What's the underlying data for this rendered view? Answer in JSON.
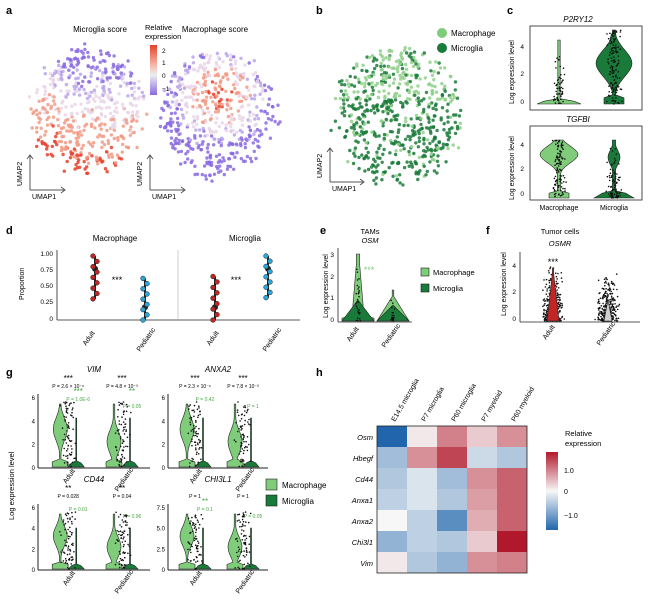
{
  "panels": {
    "a": {
      "letter": "a",
      "title_left": "Microglia score",
      "title_right": "Macrophage score",
      "legend_title_1": "Relative",
      "legend_title_2": "expression",
      "legend_ticks": [
        "2",
        "1",
        "0",
        "−1"
      ],
      "axis_y": "UMAP2",
      "axis_x": "UMAP1"
    },
    "b": {
      "letter": "b",
      "legend": [
        {
          "label": "Macrophage",
          "color": "#7fcc7a"
        },
        {
          "label": "Microglia",
          "color": "#1a7a3a"
        }
      ],
      "axis_y": "UMAP2",
      "axis_x": "UMAP1"
    },
    "c": {
      "letter": "c",
      "gene_top": "P2RY12",
      "gene_bottom": "TGFBI",
      "ylabel": "Log expression level",
      "ticks": [
        "4",
        "2",
        "0"
      ],
      "xlabels": [
        "Macrophage",
        "Microglia"
      ]
    },
    "d": {
      "letter": "d",
      "title_left": "Macrophage",
      "title_right": "Microglia",
      "ylabel": "Proportion",
      "ticks": [
        "1.00",
        "0.75",
        "0.50",
        "0.25",
        "0"
      ],
      "sig": "***",
      "xlabels": [
        "Adult",
        "Pediatric"
      ]
    },
    "e": {
      "letter": "e",
      "title_1": "TAMs",
      "title_2": "OSM",
      "ylabel": "Log expression level",
      "ticks": [
        "3",
        "2",
        "1",
        "0"
      ],
      "sig": "***",
      "xlabels": [
        "Adult",
        "Pediatric"
      ],
      "legend": [
        {
          "label": "Macrophage",
          "color": "#7fcc7a"
        },
        {
          "label": "Microglia",
          "color": "#1a7a3a"
        }
      ]
    },
    "f": {
      "letter": "f",
      "title_1": "Tumor cells",
      "title_2": "OSMR",
      "ylabel": "Log expression level",
      "ticks": [
        "4",
        "2",
        "0"
      ],
      "sig": "***",
      "xlabels": [
        "Adult",
        "Pediatric"
      ]
    },
    "g": {
      "letter": "g",
      "ylabel": "Log expression level",
      "xlabels": [
        "Adult",
        "Pediatric"
      ],
      "legend": [
        {
          "label": "Macrophage",
          "color": "#7fcc7a"
        },
        {
          "label": "Microglia",
          "color": "#1a7a3a"
        }
      ],
      "genes": [
        {
          "name": "VIM",
          "ticks": [
            "6",
            "4",
            "2",
            "0"
          ],
          "sig_black": [
            "***",
            "***"
          ],
          "p_black": [
            "P = 2.6 × 10⁻⁶",
            "P = 4.8 × 10⁻³"
          ],
          "sig_green": [
            "***",
            "**"
          ],
          "p_green": [
            "P = 1.0E-6",
            "P = 0.05"
          ]
        },
        {
          "name": "ANXA2",
          "ticks": [
            "6",
            "4",
            "2",
            "0"
          ],
          "sig_black": [
            "***",
            "***"
          ],
          "p_black": [
            "P = 2.3 × 10⁻⁶",
            "P = 7.8 × 10⁻³"
          ],
          "sig_green": [],
          "p_green": [
            "P = 0.42",
            "P = 1"
          ]
        },
        {
          "name": "CD44",
          "ticks": [
            "6",
            "4",
            "2",
            "0"
          ],
          "sig_black": [
            "**",
            "**"
          ],
          "p_black": [
            "P = 0.028",
            "P = 0.04"
          ],
          "sig_green": [],
          "p_green": [
            "P = 0.01",
            "P = 0.96"
          ]
        },
        {
          "name": "CHI3L1",
          "ticks": [
            "7.5",
            "5.0",
            "2.5",
            "0"
          ],
          "sig_black": [],
          "p_black": [
            "P = 1",
            "P = 1"
          ],
          "sig_green": [
            "**"
          ],
          "p_green": [
            "P = 0.1",
            "P = 0.05"
          ]
        }
      ]
    },
    "h": {
      "letter": "h",
      "columns": [
        "E14.5 microglia",
        "P7 microglia",
        "P60 microglia",
        "P7 myeloid",
        "P60 myeloid"
      ],
      "rows": [
        "Osm",
        "Hbegf",
        "Cd44",
        "Anxa1",
        "Anxa2",
        "Chi3l1",
        "Vim"
      ],
      "legend_title_1": "Relative",
      "legend_title_2": "expression",
      "legend_ticks": [
        "1.0",
        "0",
        "−1.0"
      ]
    }
  },
  "chart_data": [
    {
      "panel": "h",
      "type": "heatmap",
      "x": [
        "E14.5 microglia",
        "P7 microglia",
        "P60 microglia",
        "P7 myeloid",
        "P60 myeloid"
      ],
      "y": [
        "Osm",
        "Hbegf",
        "Cd44",
        "Anxa1",
        "Anxa2",
        "Chi3l1",
        "Vim"
      ],
      "values": [
        [
          -1.6,
          0.1,
          0.8,
          0.3,
          0.7
        ],
        [
          -0.6,
          0.7,
          1.2,
          -0.3,
          -0.5
        ],
        [
          -0.5,
          -0.2,
          -0.6,
          0.7,
          1.0
        ],
        [
          -0.4,
          -0.2,
          -0.5,
          0.6,
          1.0
        ],
        [
          0.0,
          -0.4,
          -1.1,
          0.5,
          1.0
        ],
        [
          -0.7,
          -0.4,
          -0.5,
          0.3,
          1.7
        ],
        [
          0.1,
          -0.5,
          -0.7,
          0.7,
          0.8
        ]
      ],
      "zlim": [
        -1.5,
        1.5
      ]
    },
    {
      "panel": "d",
      "type": "scatter",
      "series": [
        {
          "name": "Macrophage",
          "categories": [
            "Adult",
            "Pediatric"
          ],
          "median": [
            0.8,
            0.2
          ],
          "range": [
            [
              0.33,
              1.0
            ],
            [
              0.0,
              0.65
            ]
          ]
        },
        {
          "name": "Microglia",
          "categories": [
            "Adult",
            "Pediatric"
          ],
          "median": [
            0.2,
            0.8
          ],
          "range": [
            [
              0.0,
              0.68
            ],
            [
              0.35,
              1.0
            ]
          ]
        }
      ],
      "ylim": [
        0,
        1
      ]
    }
  ]
}
